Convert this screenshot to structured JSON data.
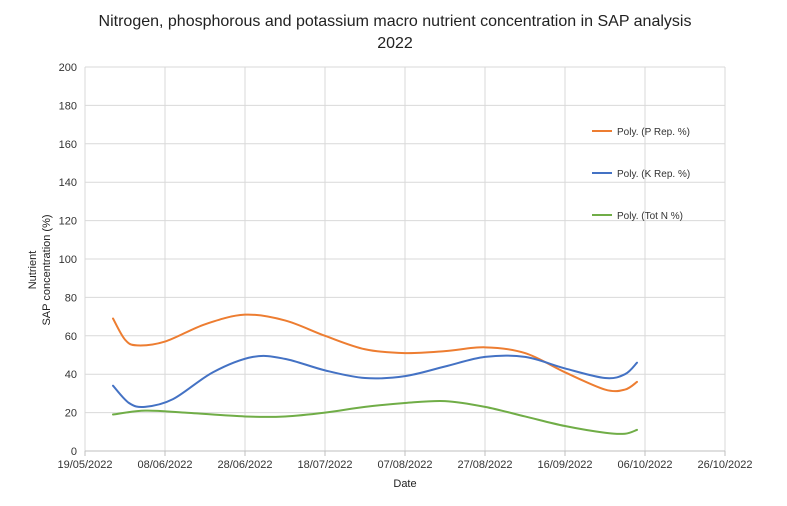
{
  "chart_data": {
    "type": "line",
    "title_lines": [
      "Nitrogen, phosphorous and potassium macro nutrient concentration in SAP analysis",
      "2022"
    ],
    "xlabel": "Date",
    "ylabel_lines": [
      "Nutrient",
      "SAP concentration (%)"
    ],
    "ylim": [
      0,
      200
    ],
    "yticks": [
      0,
      20,
      40,
      60,
      80,
      100,
      120,
      140,
      160,
      180,
      200
    ],
    "xlim": [
      "2022-05-19",
      "2022-10-26"
    ],
    "xticks": [
      "2022-05-19",
      "2022-06-08",
      "2022-06-28",
      "2022-07-18",
      "2022-08-07",
      "2022-08-27",
      "2022-09-16",
      "2022-10-06",
      "2022-10-26"
    ],
    "xtick_labels": [
      "19/05/2022",
      "08/06/2022",
      "28/06/2022",
      "18/07/2022",
      "07/08/2022",
      "27/08/2022",
      "16/09/2022",
      "06/10/2022",
      "26/10/2022"
    ],
    "grid": true,
    "legend_position": "right",
    "series": [
      {
        "name": "Poly. (P Rep. %)",
        "color": "#ED7D31",
        "points": [
          [
            "2022-05-26",
            69
          ],
          [
            "2022-05-29",
            58
          ],
          [
            "2022-06-01",
            55
          ],
          [
            "2022-06-08",
            57
          ],
          [
            "2022-06-18",
            66
          ],
          [
            "2022-06-28",
            71
          ],
          [
            "2022-07-08",
            68
          ],
          [
            "2022-07-18",
            60
          ],
          [
            "2022-07-28",
            53
          ],
          [
            "2022-08-07",
            51
          ],
          [
            "2022-08-17",
            52
          ],
          [
            "2022-08-27",
            54
          ],
          [
            "2022-09-06",
            51
          ],
          [
            "2022-09-16",
            41
          ],
          [
            "2022-09-26",
            32
          ],
          [
            "2022-10-01",
            32
          ],
          [
            "2022-10-04",
            36
          ]
        ]
      },
      {
        "name": "Poly. (K Rep. %)",
        "color": "#4472C4",
        "points": [
          [
            "2022-05-26",
            34
          ],
          [
            "2022-05-30",
            25
          ],
          [
            "2022-06-03",
            23
          ],
          [
            "2022-06-10",
            27
          ],
          [
            "2022-06-20",
            41
          ],
          [
            "2022-06-30",
            49
          ],
          [
            "2022-07-08",
            48
          ],
          [
            "2022-07-18",
            42
          ],
          [
            "2022-07-28",
            38
          ],
          [
            "2022-08-07",
            39
          ],
          [
            "2022-08-17",
            44
          ],
          [
            "2022-08-27",
            49
          ],
          [
            "2022-09-06",
            49
          ],
          [
            "2022-09-16",
            43
          ],
          [
            "2022-09-26",
            38
          ],
          [
            "2022-10-01",
            40
          ],
          [
            "2022-10-04",
            46
          ]
        ]
      },
      {
        "name": "Poly. (Tot N %)",
        "color": "#70AD47",
        "points": [
          [
            "2022-05-26",
            19
          ],
          [
            "2022-06-03",
            21
          ],
          [
            "2022-06-13",
            20
          ],
          [
            "2022-06-28",
            18
          ],
          [
            "2022-07-08",
            18
          ],
          [
            "2022-07-18",
            20
          ],
          [
            "2022-07-28",
            23
          ],
          [
            "2022-08-07",
            25
          ],
          [
            "2022-08-17",
            26
          ],
          [
            "2022-08-27",
            23
          ],
          [
            "2022-09-06",
            18
          ],
          [
            "2022-09-16",
            13
          ],
          [
            "2022-09-26",
            9.5
          ],
          [
            "2022-10-01",
            9
          ],
          [
            "2022-10-04",
            11
          ]
        ]
      }
    ]
  }
}
